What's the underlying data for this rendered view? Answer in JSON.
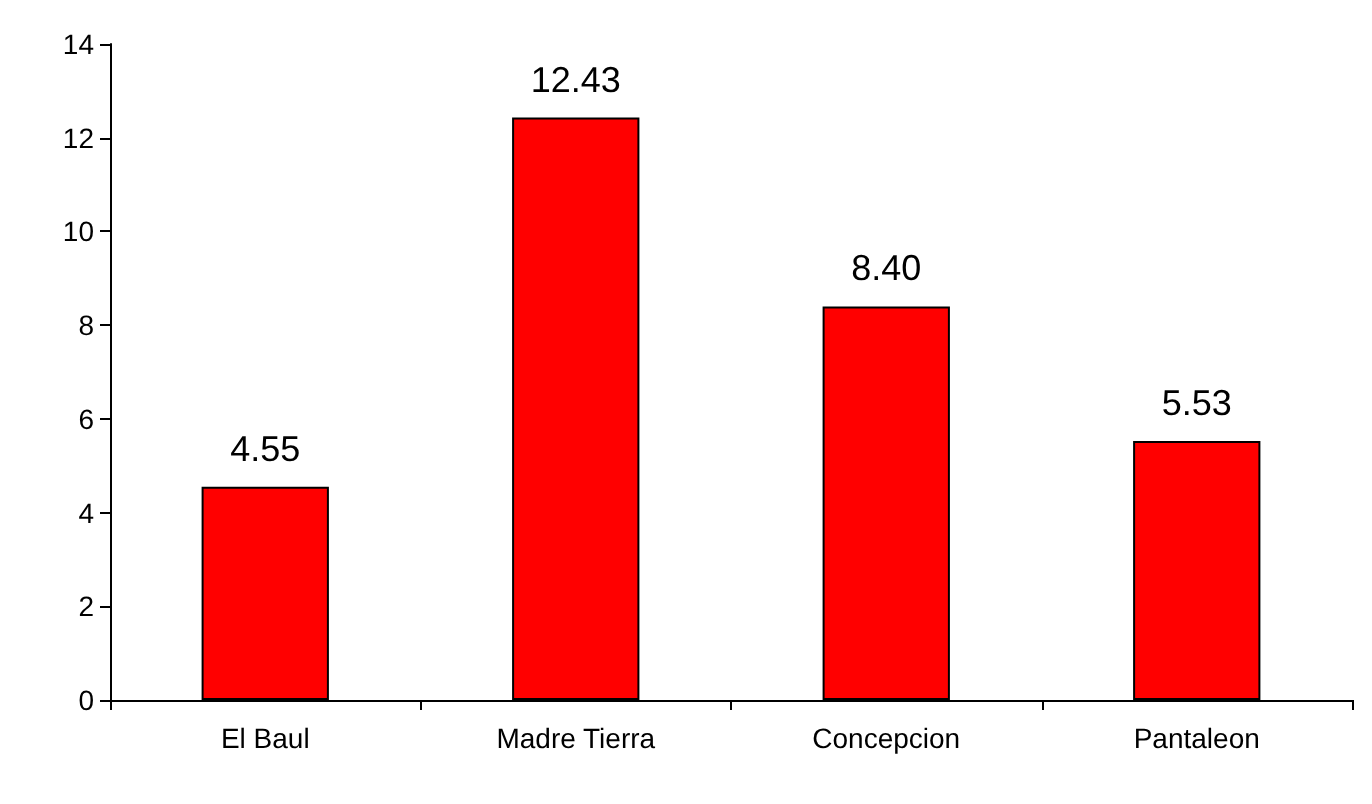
{
  "chart_data": {
    "type": "bar",
    "categories": [
      "El Baul",
      "Madre Tierra",
      "Concepcion",
      "Pantaleon"
    ],
    "values": [
      4.55,
      12.43,
      8.4,
      5.53
    ],
    "value_labels": [
      "4.55",
      "12.43",
      "8.40",
      "5.53"
    ],
    "color": "#ff0000",
    "ylim": [
      0,
      14
    ],
    "yticks": [
      0,
      2,
      4,
      6,
      8,
      10,
      12,
      14
    ],
    "grid": false
  }
}
